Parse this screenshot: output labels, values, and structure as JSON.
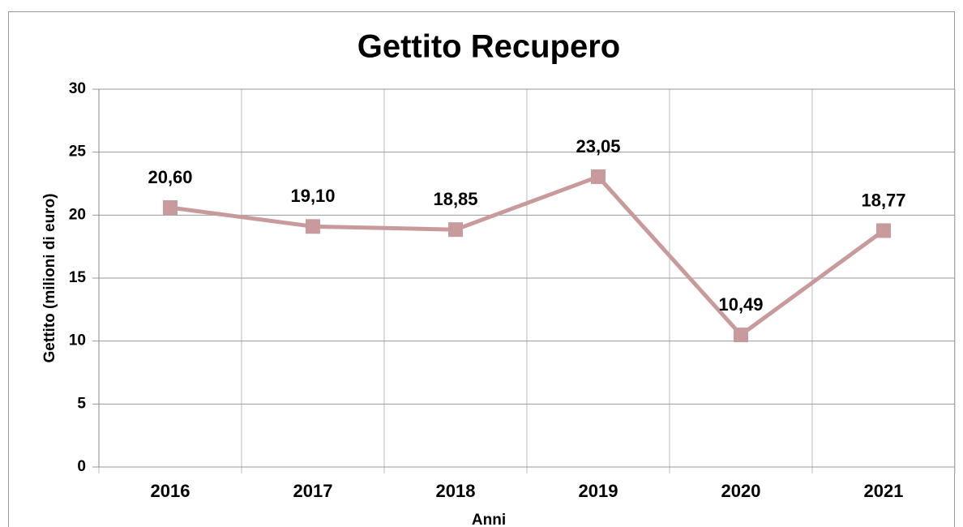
{
  "chart_data": {
    "type": "line",
    "title": "Gettito Recupero",
    "x_label": "Anni",
    "y_label": "Gettito (milioni di euro)",
    "categories": [
      "2016",
      "2017",
      "2018",
      "2019",
      "2020",
      "2021"
    ],
    "series": [
      {
        "color": "#c99a9b",
        "values": [
          20.6,
          19.1,
          18.85,
          23.05,
          10.49,
          18.77
        ],
        "value_labels": [
          "20,60",
          "19,10",
          "18,85",
          "23,05",
          "10,49",
          "18,77"
        ]
      }
    ],
    "ylim": [
      0,
      30
    ],
    "yticks": [
      0,
      5,
      10,
      15,
      20,
      25,
      30
    ],
    "grid": true
  }
}
